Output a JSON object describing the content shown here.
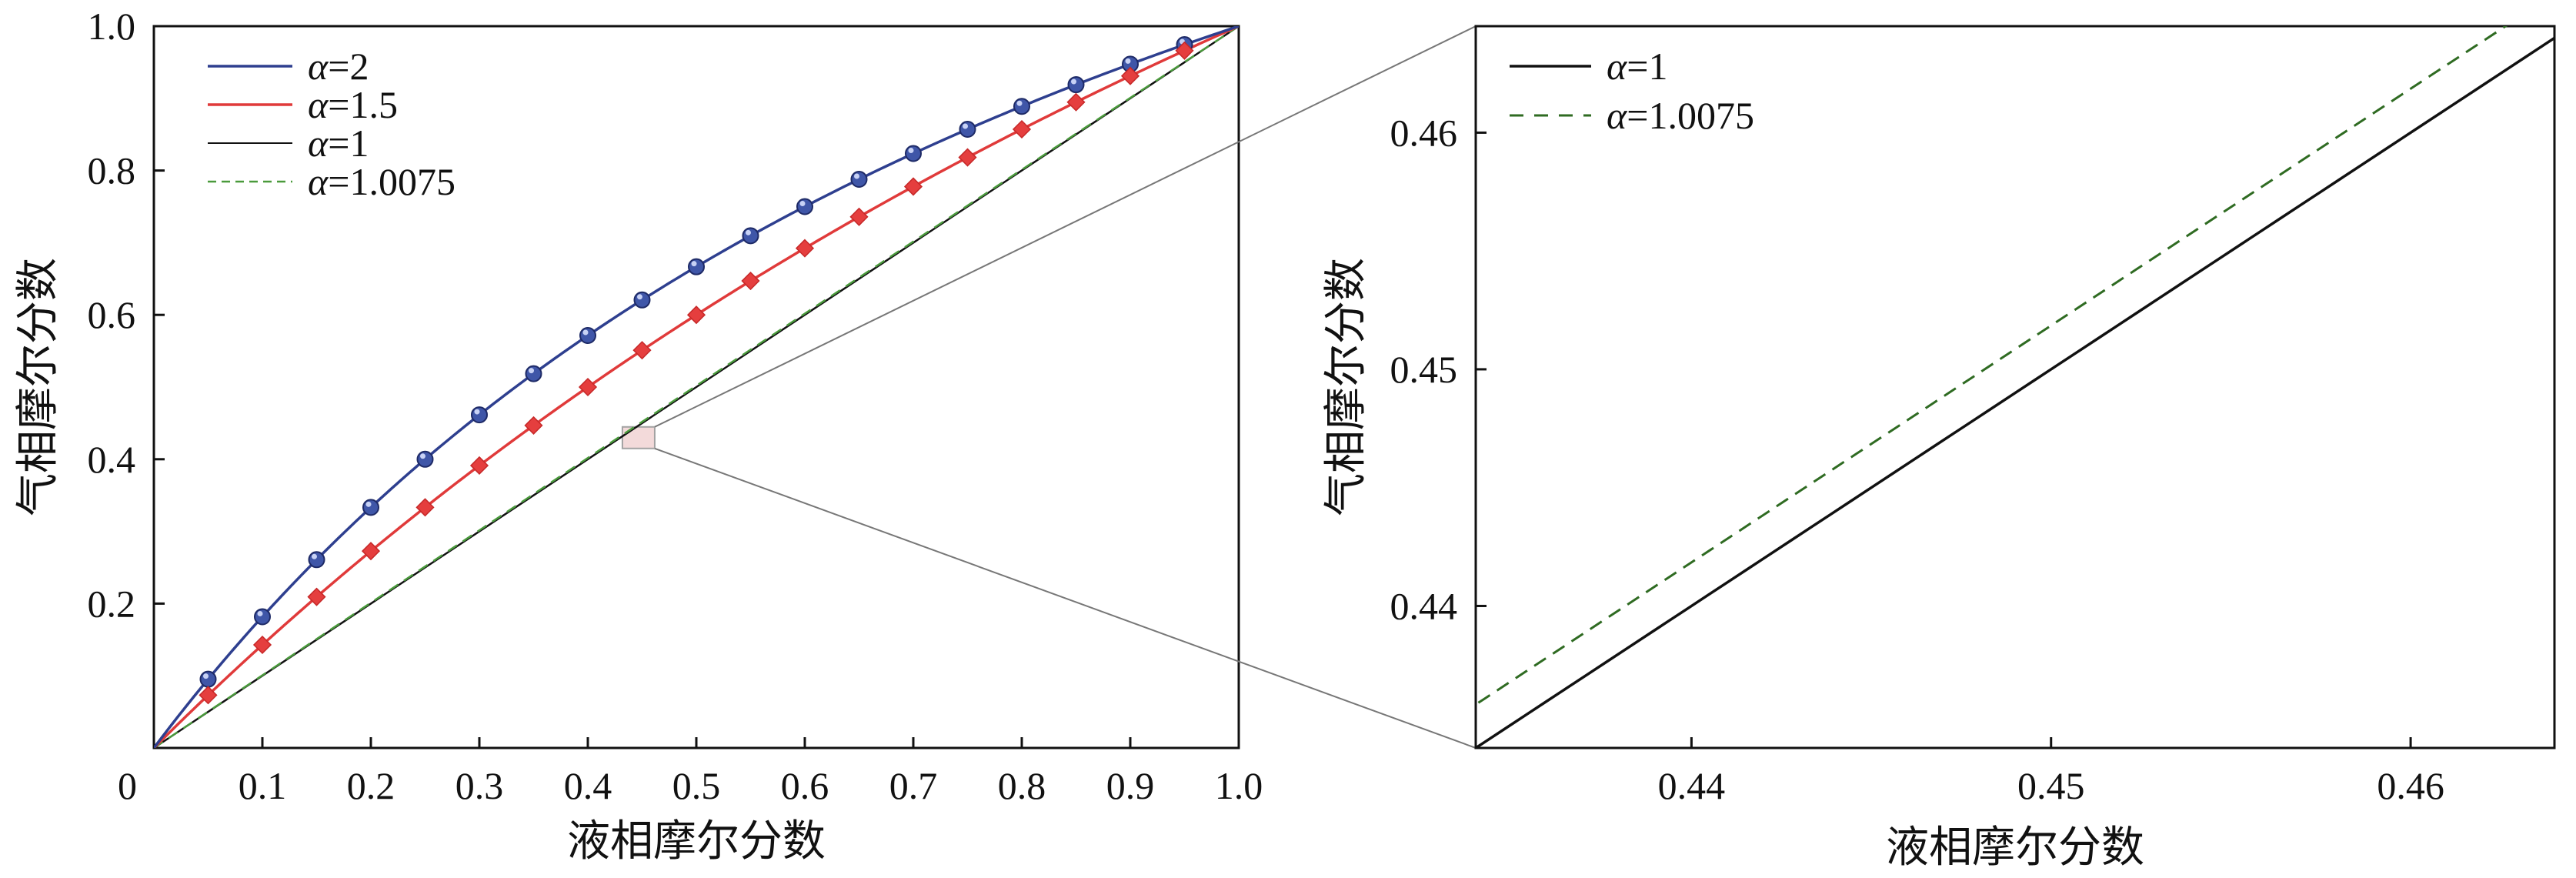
{
  "chart_data": [
    {
      "type": "line",
      "panel": "main",
      "title": "",
      "xlabel": "液相摩尔分数",
      "ylabel": "气相摩尔分数",
      "xlim": [
        0,
        1.0
      ],
      "ylim": [
        0,
        1.0
      ],
      "xticks": [
        "0",
        "0.1",
        "0.2",
        "0.3",
        "0.4",
        "0.5",
        "0.6",
        "0.7",
        "0.8",
        "0.9",
        "1.0"
      ],
      "yticks": [
        "0.2",
        "0.4",
        "0.6",
        "0.8",
        "1.0"
      ],
      "legend_position": "top-left",
      "series": [
        {
          "name": "α=2",
          "alpha": 2,
          "color": "#2e3f8f",
          "style": "solid",
          "marker": "circle",
          "marker_color": "#3f56a8",
          "marker_x": [
            0.05,
            0.1,
            0.15,
            0.2,
            0.25,
            0.3,
            0.35,
            0.4,
            0.45,
            0.5,
            0.55,
            0.6,
            0.65,
            0.7,
            0.75,
            0.8,
            0.85,
            0.9,
            0.95
          ]
        },
        {
          "name": "α=1.5",
          "alpha": 1.5,
          "color": "#e03a3a",
          "style": "solid",
          "marker": "diamond",
          "marker_color": "#e53e3e",
          "marker_x": [
            0.05,
            0.1,
            0.15,
            0.2,
            0.25,
            0.3,
            0.35,
            0.4,
            0.45,
            0.5,
            0.55,
            0.6,
            0.65,
            0.7,
            0.75,
            0.8,
            0.85,
            0.9,
            0.95
          ]
        },
        {
          "name": "α=1",
          "alpha": 1,
          "color": "#111111",
          "style": "solid",
          "marker": "none"
        },
        {
          "name": "α=1.0075",
          "alpha": 1.0075,
          "color": "#4a9a3c",
          "style": "dashed",
          "marker": "none"
        }
      ],
      "zoom_region": {
        "x": [
          0.434,
          0.464
        ],
        "y": [
          0.434,
          0.464
        ]
      }
    },
    {
      "type": "line",
      "panel": "zoom",
      "title": "",
      "xlabel": "液相摩尔分数",
      "ylabel": "气相摩尔分数",
      "xlim": [
        0.434,
        0.464
      ],
      "ylim": [
        0.434,
        0.4645
      ],
      "xticks": [
        "0.44",
        "0.45",
        "0.46"
      ],
      "yticks": [
        "0.44",
        "0.45",
        "0.46"
      ],
      "legend_position": "top-left",
      "series": [
        {
          "name": "α=1",
          "alpha": 1,
          "color": "#111111",
          "style": "solid"
        },
        {
          "name": "α=1.0075",
          "alpha": 1.0075,
          "color": "#2f6b22",
          "style": "dashed"
        }
      ]
    }
  ]
}
